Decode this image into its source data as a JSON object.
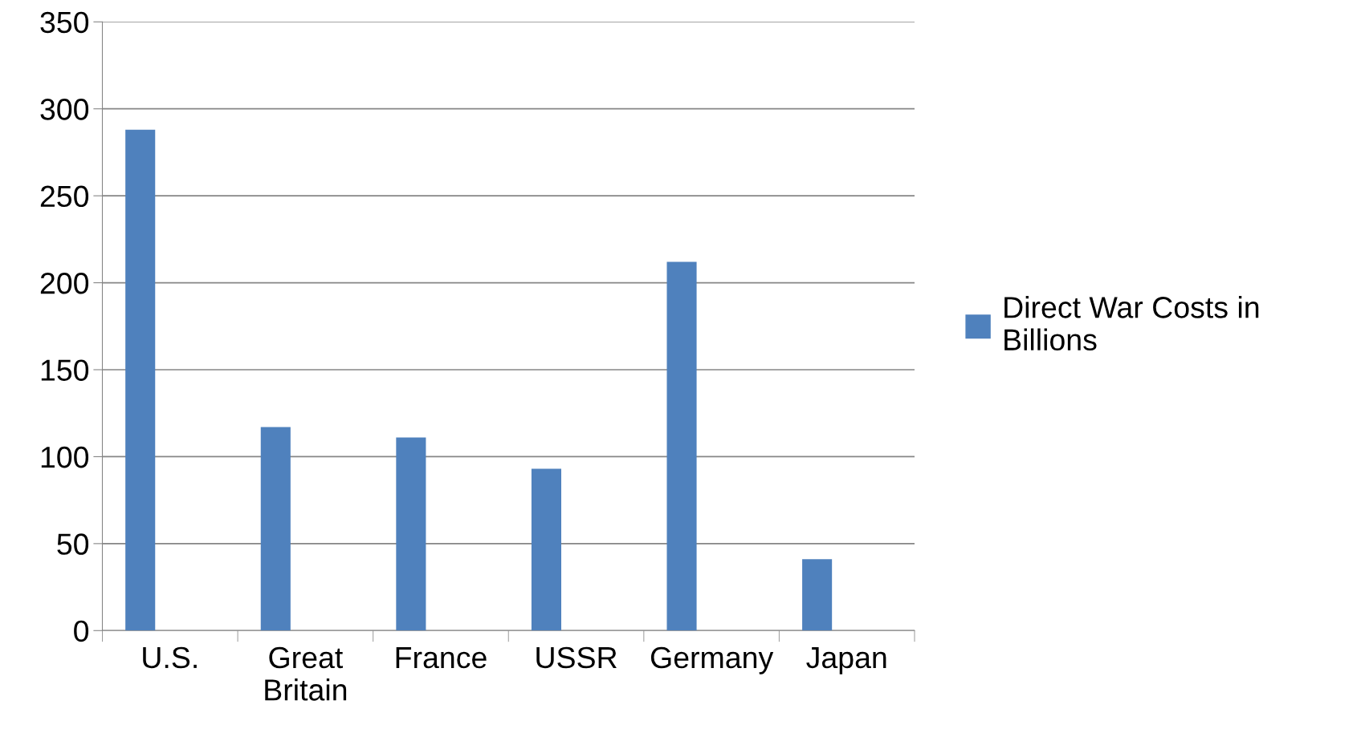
{
  "chart_data": {
    "type": "bar",
    "categories": [
      "U.S.",
      "Great\nBritain",
      "France",
      "USSR",
      "Germany",
      "Japan"
    ],
    "series": [
      {
        "name": "Direct War Costs in Billions",
        "color": "#4f81bd",
        "values": [
          288,
          117,
          111,
          93,
          212,
          41
        ]
      }
    ],
    "ylim": [
      0,
      350
    ],
    "yticks": [
      0,
      50,
      100,
      150,
      200,
      250,
      300,
      350
    ],
    "grid": "y",
    "legend": "right"
  }
}
